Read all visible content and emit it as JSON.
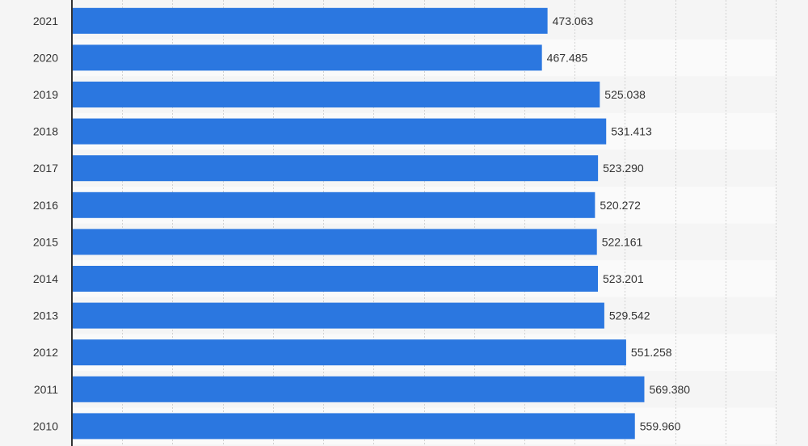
{
  "chart_data": {
    "type": "bar",
    "orientation": "horizontal",
    "categories": [
      "2021",
      "2020",
      "2019",
      "2018",
      "2017",
      "2016",
      "2015",
      "2014",
      "2013",
      "2012",
      "2011",
      "2010"
    ],
    "values": [
      473063,
      467485,
      525038,
      531413,
      523290,
      520272,
      522161,
      523201,
      529542,
      551258,
      569380,
      559960
    ],
    "value_labels": [
      "473.063",
      "467.485",
      "525.038",
      "531.413",
      "523.290",
      "520.272",
      "522.161",
      "523.201",
      "529.542",
      "551.258",
      "569.380",
      "559.960"
    ],
    "title": "",
    "xlabel": "",
    "ylabel": "",
    "xlim": [
      0,
      700000
    ],
    "grid": true,
    "bar_color": "#2b77e0",
    "band_colors": [
      "#f5f5f5",
      "#fafafa"
    ]
  }
}
